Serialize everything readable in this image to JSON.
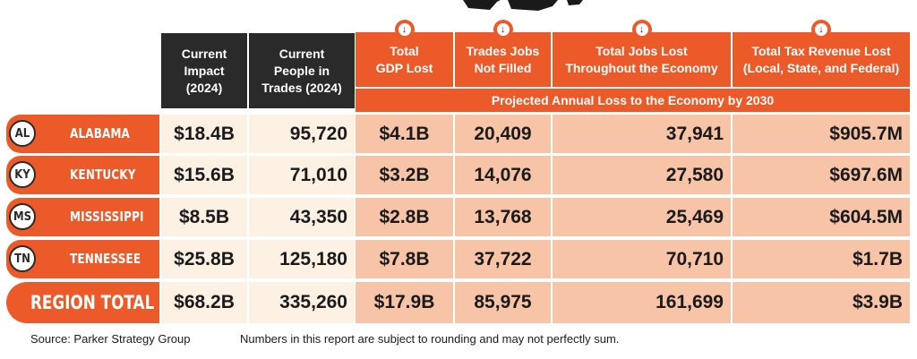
{
  "chart_data": {
    "type": "table",
    "group_header": "Projected Annual Loss to the Economy by 2030",
    "columns": [
      "Current Impact (2024)",
      "Current People in Trades (2024)",
      "Total GDP Lost",
      "Trades Jobs Not Filled",
      "Total Jobs Lost Throughout the Economy",
      "Total Tax Revenue Lost (Local, State, and Federal)"
    ],
    "rows": [
      {
        "abbr": "AL",
        "state": "ALABAMA",
        "values": [
          "$18.4B",
          "95,720",
          "$4.1B",
          "20,409",
          "37,941",
          "$905.7M"
        ]
      },
      {
        "abbr": "KY",
        "state": "KENTUCKY",
        "values": [
          "$15.6B",
          "71,010",
          "$3.2B",
          "14,076",
          "27,580",
          "$697.6M"
        ]
      },
      {
        "abbr": "MS",
        "state": "MISSISSIPPI",
        "values": [
          "$8.5B",
          "43,350",
          "$2.8B",
          "13,768",
          "25,469",
          "$604.5M"
        ]
      },
      {
        "abbr": "TN",
        "state": "TENNESSEE",
        "values": [
          "$25.8B",
          "125,180",
          "$7.8B",
          "37,722",
          "70,710",
          "$1.7B"
        ]
      }
    ],
    "total": {
      "label": "REGION TOTAL",
      "values": [
        "$68.2B",
        "335,260",
        "$17.9B",
        "85,975",
        "161,699",
        "$3.9B"
      ]
    }
  },
  "header_lines": [
    [
      "Current",
      "Impact",
      "(2024)"
    ],
    [
      "Current",
      "People in",
      "Trades (2024)"
    ],
    [
      "Total",
      "GDP Lost"
    ],
    [
      "Trades Jobs",
      "Not Filled"
    ],
    [
      "Total Jobs Lost",
      "Throughout the Economy"
    ],
    [
      "Total Tax Revenue Lost",
      "(Local, State, and Federal)"
    ]
  ],
  "footer": {
    "source": "Source: Parker Strategy Group",
    "note": "Numbers in this report are subject to rounding and may not perfectly sum."
  },
  "colors": {
    "accent": "#ed5a2a",
    "dark": "#2a2a2a",
    "cream": "#fdf1e4",
    "peach": "#f8c4a8"
  },
  "icons": {
    "column_marker": "down-arrow-icon"
  }
}
